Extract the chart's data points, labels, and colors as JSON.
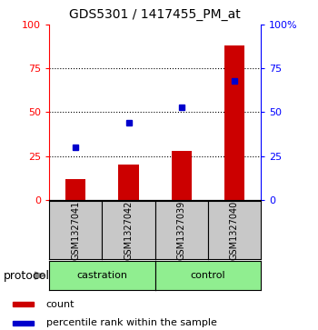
{
  "title": "GDS5301 / 1417455_PM_at",
  "samples": [
    "GSM1327041",
    "GSM1327042",
    "GSM1327039",
    "GSM1327040"
  ],
  "bar_values": [
    12,
    20,
    28,
    88
  ],
  "percentile_values": [
    30,
    44,
    53,
    68
  ],
  "groups": [
    {
      "label": "castration",
      "indices": [
        0,
        1
      ],
      "color": "#90EE90"
    },
    {
      "label": "control",
      "indices": [
        2,
        3
      ],
      "color": "#90EE90"
    }
  ],
  "bar_color": "#CC0000",
  "marker_color": "#0000CC",
  "left_ylim": [
    0,
    100
  ],
  "right_ylim": [
    0,
    100
  ],
  "left_yticks": [
    0,
    25,
    50,
    75,
    100
  ],
  "right_yticks": [
    0,
    25,
    50,
    75,
    100
  ],
  "right_yticklabels": [
    "0",
    "25",
    "50",
    "75",
    "100%"
  ],
  "hline_values": [
    25,
    50,
    75
  ],
  "protocol_label": "protocol",
  "legend_count_label": "count",
  "legend_percentile_label": "percentile rank within the sample",
  "sample_box_color": "#C8C8C8",
  "group_box_color": "#90EE90",
  "title_fontsize": 10,
  "tick_fontsize": 8,
  "sample_fontsize": 7,
  "group_fontsize": 8,
  "legend_fontsize": 8
}
